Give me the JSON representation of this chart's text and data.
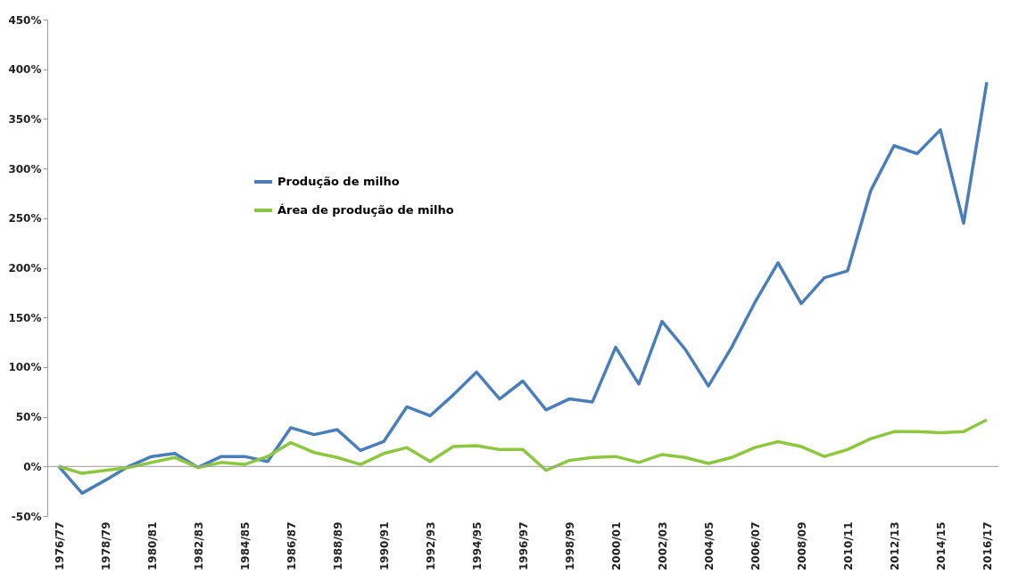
{
  "chart_data": {
    "type": "line",
    "categories": [
      "1976/77",
      null,
      "1978/79",
      null,
      "1980/81",
      null,
      "1982/83",
      null,
      "1984/85",
      null,
      "1986/87",
      null,
      "1988/89",
      null,
      "1990/91",
      null,
      "1992/93",
      null,
      "1994/95",
      null,
      "1996/97",
      null,
      "1998/99",
      null,
      "2000/01",
      null,
      "2002/03",
      null,
      "2004/05",
      null,
      "2006/07",
      null,
      "2008/09",
      null,
      "2010/11",
      null,
      "2012/13",
      null,
      "2014/15",
      null,
      "2016/17"
    ],
    "series": [
      {
        "name": "Produção de milho",
        "color": "#4a7ebb",
        "values": [
          0,
          -27,
          -14,
          0,
          10,
          13,
          -1,
          10,
          10,
          5,
          39,
          32,
          37,
          16,
          25,
          60,
          51,
          72,
          95,
          68,
          86,
          57,
          68,
          65,
          120,
          83,
          146,
          118,
          81,
          120,
          165,
          205,
          164,
          190,
          197,
          278,
          323,
          315,
          339,
          245,
          387
        ]
      },
      {
        "name": "Área de produção de milho",
        "color": "#8dc63f",
        "values": [
          0,
          -7,
          -4,
          -1,
          4,
          9,
          -1,
          4,
          2,
          10,
          24,
          14,
          9,
          2,
          13,
          19,
          5,
          20,
          21,
          17,
          17,
          -4,
          6,
          9,
          10,
          4,
          12,
          9,
          3,
          9,
          19,
          25,
          20,
          10,
          17,
          28,
          35,
          35,
          34,
          35,
          47
        ]
      }
    ],
    "ylim": [
      -50,
      450
    ],
    "yticks": [
      {
        "value": -50,
        "label": "-50%"
      },
      {
        "value": 0,
        "label": "0%"
      },
      {
        "value": 50,
        "label": "50%"
      },
      {
        "value": 100,
        "label": "100%"
      },
      {
        "value": 150,
        "label": "150%"
      },
      {
        "value": 200,
        "label": "200%"
      },
      {
        "value": 250,
        "label": "250%"
      },
      {
        "value": 300,
        "label": "300%"
      },
      {
        "value": 350,
        "label": "350%"
      },
      {
        "value": 400,
        "label": "400%"
      },
      {
        "value": 450,
        "label": "450%"
      }
    ],
    "legend": "left",
    "line_style": "solid",
    "marker": "none"
  }
}
